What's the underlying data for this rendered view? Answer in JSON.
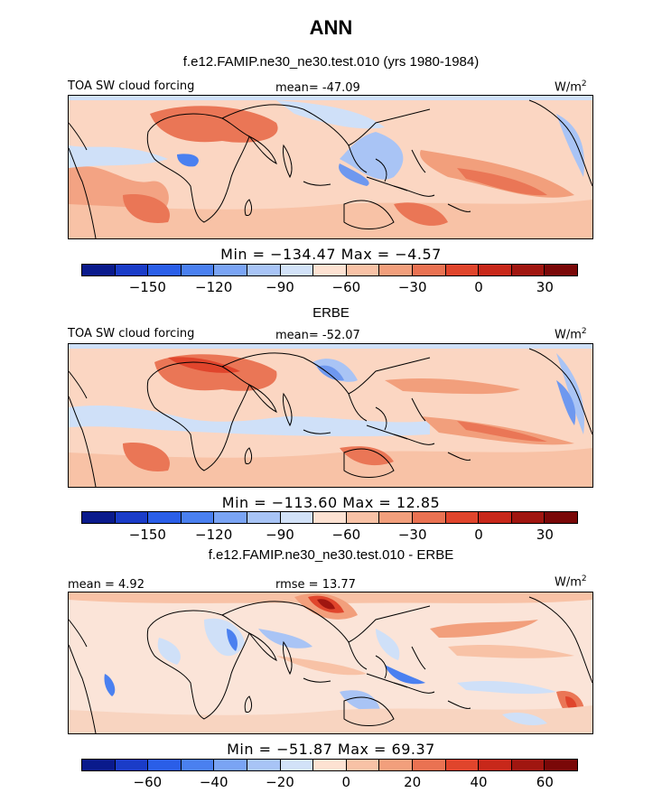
{
  "title": "ANN",
  "panels": [
    {
      "heading": "f.e12.FAMIP.ne30_ne30.test.010 (yrs 1980-1984)",
      "left_label": "TOA SW cloud forcing",
      "center_label": "mean= -47.09",
      "right_label": "W/m",
      "right_sup": "2",
      "minmax": "Min = −134.47 Max = −4.57",
      "colorbar": {
        "ticks": [
          "−150",
          "−120",
          "−90",
          "−60",
          "−30",
          "0",
          "30"
        ],
        "colors": [
          "#0a1a8c",
          "#1a3cc8",
          "#2a5ee8",
          "#4a80f0",
          "#7aa4f4",
          "#a8c4f6",
          "#d2e2f8",
          "#fde2d2",
          "#f8c2a6",
          "#f29f7c",
          "#ea7252",
          "#e0452c",
          "#c8281a",
          "#a01610",
          "#7a0808"
        ]
      }
    },
    {
      "heading": "ERBE",
      "left_label": "TOA SW cloud forcing",
      "center_label": "mean= -52.07",
      "right_label": "W/m",
      "right_sup": "2",
      "minmax": "Min = −113.60 Max = 12.85",
      "colorbar": {
        "ticks": [
          "−150",
          "−120",
          "−90",
          "−60",
          "−30",
          "0",
          "30"
        ],
        "colors": [
          "#0a1a8c",
          "#1a3cc8",
          "#2a5ee8",
          "#4a80f0",
          "#7aa4f4",
          "#a8c4f6",
          "#d2e2f8",
          "#fde2d2",
          "#f8c2a6",
          "#f29f7c",
          "#ea7252",
          "#e0452c",
          "#c8281a",
          "#a01610",
          "#7a0808"
        ]
      }
    },
    {
      "heading": "f.e12.FAMIP.ne30_ne30.test.010 - ERBE",
      "left_label": "mean = 4.92",
      "center_label": "rmse = 13.77",
      "right_label": "W/m",
      "right_sup": "2",
      "minmax": "Min = −51.87 Max = 69.37",
      "colorbar": {
        "ticks": [
          "−60",
          "−40",
          "−20",
          "0",
          "20",
          "40",
          "60"
        ],
        "colors": [
          "#0a1a8c",
          "#1a3cc8",
          "#2a5ee8",
          "#4a80f0",
          "#7aa4f4",
          "#a8c4f6",
          "#d2e2f8",
          "#fde2d2",
          "#f8c2a6",
          "#f29f7c",
          "#ea7252",
          "#e0452c",
          "#c8281a",
          "#a01610",
          "#7a0808"
        ]
      }
    }
  ]
}
